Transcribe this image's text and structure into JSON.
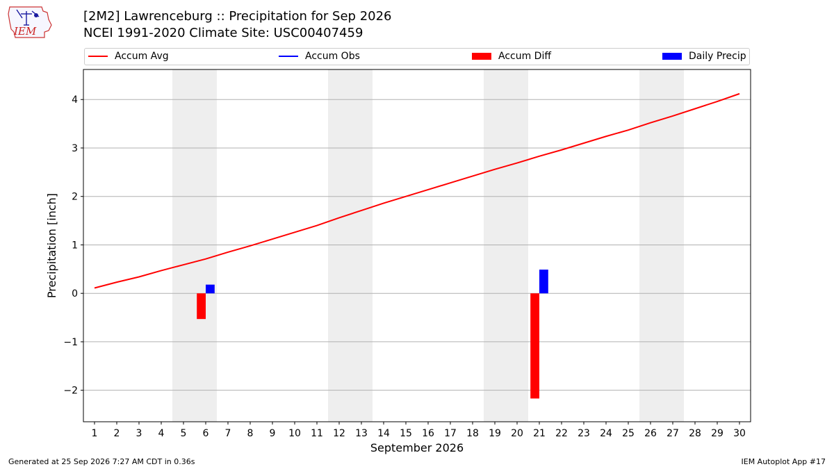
{
  "header": {
    "logo_text": "IEM",
    "title_line1": "[2M2] Lawrenceburg :: Precipitation for Sep 2026",
    "title_line2": "NCEI 1991-2020 Climate Site: USC00407459"
  },
  "legend": [
    {
      "label": "Accum Avg",
      "color": "#ff0000",
      "kind": "line"
    },
    {
      "label": "Accum Obs",
      "color": "#0000ff",
      "kind": "line"
    },
    {
      "label": "Accum Diff",
      "color": "#ff0000",
      "kind": "bar"
    },
    {
      "label": "Daily Precip",
      "color": "#0000ff",
      "kind": "bar"
    }
  ],
  "footer": {
    "generated": "Generated at 25 Sep 2026 7:27 AM CDT in 0.36s",
    "app": "IEM Autoplot App #17"
  },
  "chart_data": {
    "type": "bar",
    "title": "[2M2] Lawrenceburg :: Precipitation for Sep 2026",
    "xlabel": "September 2026",
    "ylabel": "Precipitation [inch]",
    "xlim": [
      0.5,
      30.5
    ],
    "ylim": [
      -2.65,
      4.62
    ],
    "x_ticks": [
      1,
      2,
      3,
      4,
      5,
      6,
      7,
      8,
      9,
      10,
      11,
      12,
      13,
      14,
      15,
      16,
      17,
      18,
      19,
      20,
      21,
      22,
      23,
      24,
      25,
      26,
      27,
      28,
      29,
      30
    ],
    "y_ticks": [
      -2,
      -1,
      0,
      1,
      2,
      3,
      4
    ],
    "grid": "y",
    "weekend_shading": [
      [
        5,
        6
      ],
      [
        12,
        13
      ],
      [
        19,
        20
      ],
      [
        26,
        27
      ]
    ],
    "series": [
      {
        "name": "Accum Avg",
        "kind": "line",
        "color": "#ff0000",
        "x": [
          1,
          2,
          3,
          4,
          5,
          6,
          7,
          8,
          9,
          10,
          11,
          12,
          13,
          14,
          15,
          16,
          17,
          18,
          19,
          20,
          21,
          22,
          23,
          24,
          25,
          26,
          27,
          28,
          29,
          30
        ],
        "values": [
          0.11,
          0.23,
          0.34,
          0.47,
          0.59,
          0.71,
          0.85,
          0.98,
          1.12,
          1.26,
          1.4,
          1.56,
          1.71,
          1.86,
          2.0,
          2.14,
          2.28,
          2.42,
          2.56,
          2.69,
          2.83,
          2.96,
          3.1,
          3.24,
          3.37,
          3.52,
          3.66,
          3.81,
          3.96,
          4.12
        ]
      },
      {
        "name": "Accum Diff",
        "kind": "bar",
        "color": "#ff0000",
        "x": [
          6,
          21
        ],
        "values": [
          -0.53,
          -2.17
        ]
      },
      {
        "name": "Daily Precip",
        "kind": "bar",
        "color": "#0000ff",
        "x": [
          6,
          21
        ],
        "values": [
          0.18,
          0.49
        ]
      }
    ]
  }
}
